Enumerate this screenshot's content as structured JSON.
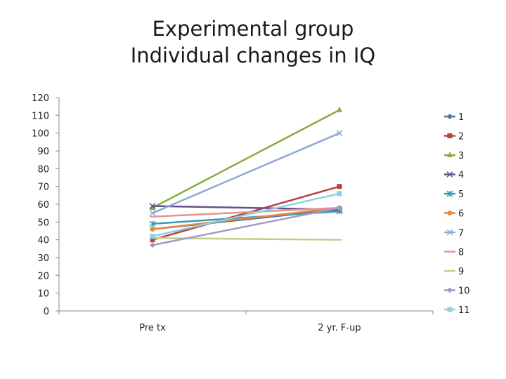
{
  "chart_data": {
    "type": "line",
    "title_lines": [
      "Experimental group",
      "Individual changes in IQ"
    ],
    "xlabel": "",
    "ylabel": "",
    "categories": [
      "Pre tx",
      "2 yr. F-up"
    ],
    "ylim": [
      0,
      120
    ],
    "yticks": [
      0,
      10,
      20,
      30,
      40,
      50,
      60,
      70,
      80,
      90,
      100,
      110,
      120
    ],
    "grid": false,
    "legend_position": "right",
    "series": [
      {
        "name": "1",
        "values": [
          46,
          57
        ],
        "color": "#4a6fa5",
        "marker": "diamond"
      },
      {
        "name": "2",
        "values": [
          40,
          70
        ],
        "color": "#b8413f",
        "marker": "square"
      },
      {
        "name": "3",
        "values": [
          58,
          113
        ],
        "color": "#8aab3f",
        "marker": "triangle"
      },
      {
        "name": "4",
        "values": [
          59,
          57
        ],
        "color": "#6a4f8f",
        "marker": "x"
      },
      {
        "name": "5",
        "values": [
          49,
          56
        ],
        "color": "#3a9bb5",
        "marker": "star"
      },
      {
        "name": "6",
        "values": [
          46,
          58
        ],
        "color": "#e58a3a",
        "marker": "circle"
      },
      {
        "name": "7",
        "values": [
          55,
          100
        ],
        "color": "#8fa8d8",
        "marker": "x"
      },
      {
        "name": "8",
        "values": [
          53,
          58
        ],
        "color": "#e09693",
        "marker": "dash"
      },
      {
        "name": "9",
        "values": [
          41,
          40
        ],
        "color": "#bcd08c",
        "marker": "dash"
      },
      {
        "name": "10",
        "values": [
          37,
          58
        ],
        "color": "#a699c6",
        "marker": "diamond"
      },
      {
        "name": "11",
        "values": [
          42,
          66
        ],
        "color": "#8fd0e3",
        "marker": "square"
      }
    ]
  }
}
